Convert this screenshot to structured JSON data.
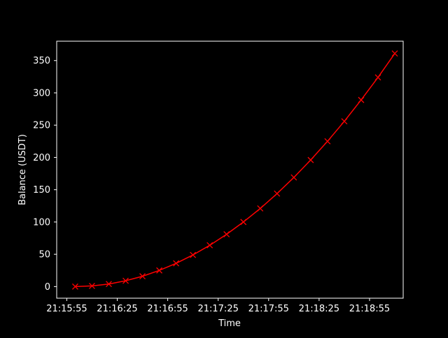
{
  "chart_data": {
    "type": "line",
    "title": "",
    "xlabel": "Time",
    "ylabel": "Balance (USDT)",
    "x_tick_labels": [
      "21:15:55",
      "21:16:25",
      "21:16:55",
      "21:17:25",
      "21:17:55",
      "21:18:25",
      "21:18:55"
    ],
    "y_tick_labels": [
      "0",
      "50",
      "100",
      "150",
      "200",
      "250",
      "300",
      "350"
    ],
    "x_ticks": [
      "21:15:55",
      "21:16:25",
      "21:16:55",
      "21:17:25",
      "21:17:55",
      "21:18:25",
      "21:18:55"
    ],
    "y_ticks": [
      0,
      50,
      100,
      150,
      200,
      250,
      300,
      350
    ],
    "xlim": [
      "21:15:49",
      "21:19:15"
    ],
    "ylim": [
      -18,
      380
    ],
    "grid": false,
    "series": [
      {
        "color": "#ff0000",
        "marker": "x",
        "x": [
          "21:16:00",
          "21:16:10",
          "21:16:20",
          "21:16:30",
          "21:16:40",
          "21:16:50",
          "21:17:00",
          "21:17:10",
          "21:17:20",
          "21:17:30",
          "21:17:40",
          "21:17:50",
          "21:18:00",
          "21:18:10",
          "21:18:20",
          "21:18:30",
          "21:18:40",
          "21:18:50",
          "21:19:00",
          "21:19:10"
        ],
        "values": [
          0,
          1,
          4,
          9,
          16,
          25,
          36,
          49,
          64,
          81,
          100,
          121,
          144,
          169,
          196,
          225,
          256,
          289,
          324,
          361
        ]
      }
    ]
  },
  "colors": {
    "background": "#000000",
    "axes": "#ffffff",
    "text": "#ffffff",
    "line": "#ff0000"
  }
}
